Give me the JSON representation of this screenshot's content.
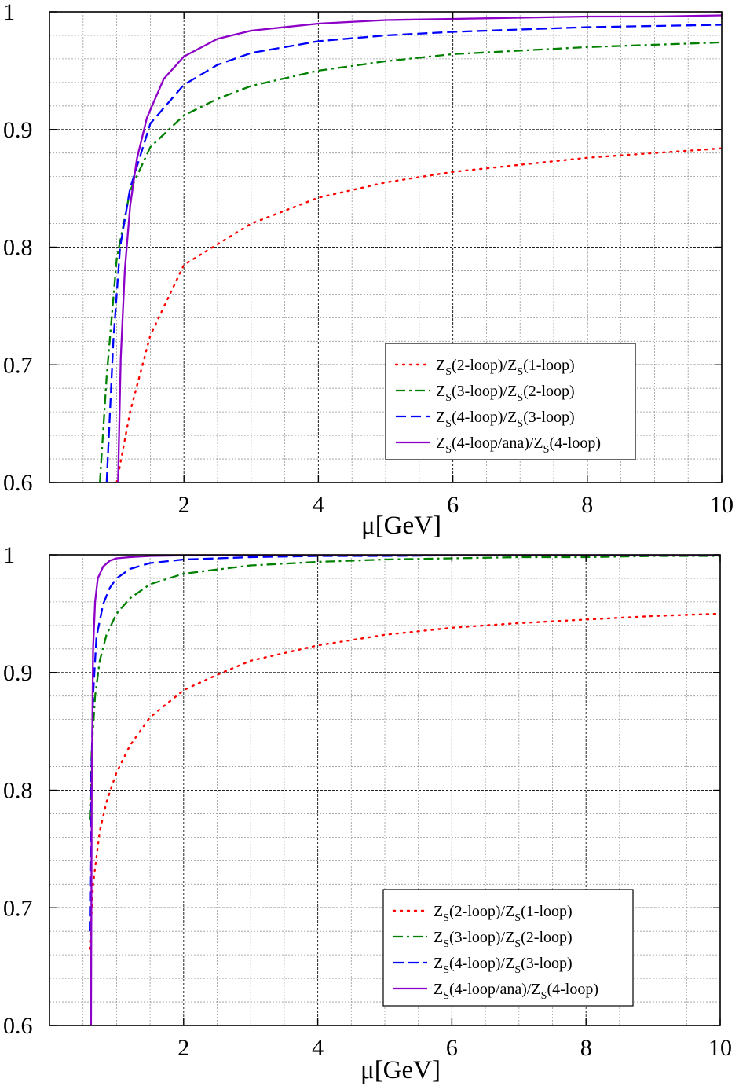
{
  "figure": {
    "colors": {
      "series_1": "#ff0000",
      "series_2": "#008000",
      "series_3": "#0000ff",
      "series_4": "#8c00c8",
      "grid_major": "#222222",
      "grid_minor": "#9a9a9a"
    }
  },
  "chart_data": [
    {
      "type": "line",
      "panel": "top",
      "title": "",
      "xlabel": "μ[GeV]",
      "ylabel": "",
      "xlim": [
        0,
        10
      ],
      "ylim": [
        0.6,
        1.0
      ],
      "x_ticks": [
        2,
        4,
        6,
        8,
        10
      ],
      "y_ticks": [
        0.6,
        0.7,
        0.8,
        0.9,
        1.0
      ],
      "x_tick_labels": [
        "2",
        "4",
        "6",
        "8",
        "10"
      ],
      "y_tick_labels": [
        "0.6",
        "0.7",
        "0.8",
        "0.9",
        "1"
      ],
      "grid": true,
      "legend_position": "bottom-right",
      "series": [
        {
          "name": "Z_S(2-loop)/Z_S(1-loop)",
          "legend": {
            "pre": "Z",
            "sub1": "S",
            "mid": "(2-loop)/Z",
            "sub2": "S",
            "post": "(1-loop)"
          },
          "color": "#ff0000",
          "style": "dotted",
          "x": [
            1.0,
            1.2,
            1.5,
            2.0,
            3.0,
            4.0,
            5.0,
            6.0,
            7.0,
            8.0,
            9.0,
            10.0
          ],
          "y": [
            0.6,
            0.66,
            0.725,
            0.785,
            0.82,
            0.842,
            0.855,
            0.864,
            0.87,
            0.876,
            0.88,
            0.884
          ]
        },
        {
          "name": "Z_S(3-loop)/Z_S(2-loop)",
          "legend": {
            "pre": "Z",
            "sub1": "S",
            "mid": "(3-loop)/Z",
            "sub2": "S",
            "post": "(2-loop)"
          },
          "color": "#008000",
          "style": "dashdot",
          "x": [
            0.75,
            0.85,
            1.0,
            1.2,
            1.5,
            2.0,
            2.5,
            3.0,
            4.0,
            5.0,
            6.0,
            7.0,
            8.0,
            9.0,
            10.0
          ],
          "y": [
            0.6,
            0.69,
            0.79,
            0.848,
            0.885,
            0.912,
            0.926,
            0.937,
            0.95,
            0.958,
            0.964,
            0.967,
            0.97,
            0.972,
            0.974
          ]
        },
        {
          "name": "Z_S(4-loop)/Z_S(3-loop)",
          "legend": {
            "pre": "Z",
            "sub1": "S",
            "mid": "(4-loop)/Z",
            "sub2": "S",
            "post": "(3-loop)"
          },
          "color": "#0000ff",
          "style": "dashed",
          "x": [
            0.85,
            0.95,
            1.05,
            1.2,
            1.5,
            2.0,
            2.5,
            3.0,
            4.0,
            5.0,
            6.0,
            7.0,
            8.0,
            9.0,
            10.0
          ],
          "y": [
            0.6,
            0.72,
            0.8,
            0.85,
            0.905,
            0.938,
            0.955,
            0.965,
            0.975,
            0.98,
            0.983,
            0.985,
            0.987,
            0.988,
            0.989
          ]
        },
        {
          "name": "Z_S(4-loop/ana)/Z_S(4-loop)",
          "legend": {
            "pre": "Z",
            "sub1": "S",
            "mid": "(4-loop/ana)/Z",
            "sub2": "S",
            "post": "(4-loop)"
          },
          "color": "#8c00c8",
          "style": "solid",
          "x": [
            1.02,
            1.06,
            1.12,
            1.2,
            1.3,
            1.45,
            1.7,
            2.0,
            2.5,
            3.0,
            4.0,
            5.0,
            6.0,
            7.0,
            8.0,
            9.0,
            10.0
          ],
          "y": [
            0.6,
            0.705,
            0.78,
            0.835,
            0.875,
            0.91,
            0.943,
            0.962,
            0.977,
            0.984,
            0.99,
            0.993,
            0.994,
            0.995,
            0.996,
            0.996,
            0.997
          ]
        }
      ]
    },
    {
      "type": "line",
      "panel": "bottom",
      "title": "",
      "xlabel": "μ[GeV]",
      "ylabel": "",
      "xlim": [
        0,
        10
      ],
      "ylim": [
        0.6,
        1.0
      ],
      "x_ticks": [
        2,
        4,
        6,
        8,
        10
      ],
      "y_ticks": [
        0.6,
        0.7,
        0.8,
        0.9,
        1.0
      ],
      "x_tick_labels": [
        "2",
        "4",
        "6",
        "8",
        "10"
      ],
      "y_tick_labels": [
        "0.6",
        "0.7",
        "0.8",
        "0.9",
        "1"
      ],
      "grid": true,
      "legend_position": "bottom-right",
      "series": [
        {
          "name": "Z_S(2-loop)/Z_S(1-loop)",
          "legend": {
            "pre": "Z",
            "sub1": "S",
            "mid": "(2-loop)/Z",
            "sub2": "S",
            "post": "(1-loop)"
          },
          "color": "#ff0000",
          "style": "dotted",
          "x": [
            0.6,
            0.65,
            0.75,
            0.85,
            1.0,
            1.2,
            1.5,
            2.0,
            2.5,
            3.0,
            4.0,
            5.0,
            6.0,
            7.0,
            8.0,
            9.0,
            10.0
          ],
          "y": [
            0.665,
            0.72,
            0.765,
            0.79,
            0.815,
            0.838,
            0.862,
            0.885,
            0.898,
            0.91,
            0.923,
            0.932,
            0.938,
            0.942,
            0.945,
            0.948,
            0.95
          ]
        },
        {
          "name": "Z_S(3-loop)/Z_S(2-loop)",
          "legend": {
            "pre": "Z",
            "sub1": "S",
            "mid": "(3-loop)/Z",
            "sub2": "S",
            "post": "(2-loop)"
          },
          "color": "#008000",
          "style": "dashdot",
          "x": [
            0.6,
            0.63,
            0.68,
            0.75,
            0.85,
            1.0,
            1.2,
            1.5,
            2.0,
            3.0,
            4.0,
            5.0,
            6.0,
            7.0,
            8.0,
            9.0,
            10.0
          ],
          "y": [
            0.775,
            0.835,
            0.88,
            0.91,
            0.932,
            0.95,
            0.963,
            0.975,
            0.984,
            0.991,
            0.994,
            0.996,
            0.997,
            0.998,
            0.998,
            0.999,
            0.999
          ]
        },
        {
          "name": "Z_S(4-loop)/Z_S(3-loop)",
          "legend": {
            "pre": "Z",
            "sub1": "S",
            "mid": "(4-loop)/Z",
            "sub2": "S",
            "post": "(3-loop)"
          },
          "color": "#0000ff",
          "style": "dashed",
          "x": [
            0.6,
            0.62,
            0.65,
            0.7,
            0.8,
            0.9,
            1.0,
            1.2,
            1.5,
            2.0,
            3.0,
            4.0,
            5.0,
            6.0,
            7.0,
            8.0,
            9.0,
            10.0
          ],
          "y": [
            0.68,
            0.8,
            0.88,
            0.93,
            0.958,
            0.972,
            0.98,
            0.988,
            0.993,
            0.996,
            0.998,
            0.999,
            0.999,
            0.9995,
            0.9995,
            0.9998,
            0.9998,
            0.9999
          ]
        },
        {
          "name": "Z_S(4-loop/ana)/Z_S(4-loop)",
          "legend": {
            "pre": "Z",
            "sub1": "S",
            "mid": "(4-loop/ana)/Z",
            "sub2": "S",
            "post": "(4-loop)"
          },
          "color": "#8c00c8",
          "style": "solid",
          "x": [
            0.62,
            0.63,
            0.65,
            0.68,
            0.72,
            0.8,
            0.9,
            1.0,
            1.2,
            1.5,
            2.0,
            3.0,
            5.0,
            7.0,
            10.0
          ],
          "y": [
            0.6,
            0.8,
            0.92,
            0.96,
            0.98,
            0.99,
            0.995,
            0.997,
            0.998,
            0.999,
            0.9995,
            0.9998,
            0.9999,
            1.0,
            1.0
          ]
        }
      ]
    }
  ]
}
